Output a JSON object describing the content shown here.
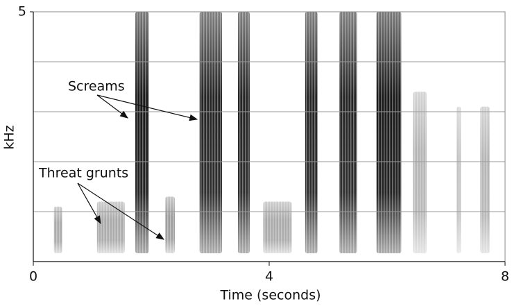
{
  "chart_data": {
    "type": "spectrogram",
    "xlabel": "Time (seconds)",
    "ylabel": "kHz",
    "xlim": [
      0,
      8
    ],
    "xticks": [
      0,
      4,
      8
    ],
    "ylim": [
      0,
      5
    ],
    "yticks": [
      5
    ],
    "ygrid": [
      1,
      2,
      3,
      4
    ],
    "color": "#1a1a1a",
    "annotations": [
      "Screams",
      "Threat grunts"
    ],
    "bands": [
      {
        "x": [
          0.35,
          0.49
        ],
        "top": 1.1,
        "level": 0.35
      },
      {
        "x": [
          1.08,
          1.55
        ],
        "top": 1.2,
        "level": 0.35
      },
      {
        "x": [
          1.73,
          1.96
        ],
        "top": 5,
        "level": 0.95
      },
      {
        "x": [
          2.24,
          2.4
        ],
        "top": 1.3,
        "level": 0.4
      },
      {
        "x": [
          2.82,
          3.2
        ],
        "top": 5,
        "level": 0.9
      },
      {
        "x": [
          3.47,
          3.67
        ],
        "top": 5,
        "level": 0.9
      },
      {
        "x": [
          3.9,
          4.38
        ],
        "top": 1.2,
        "level": 0.35
      },
      {
        "x": [
          4.61,
          4.82
        ],
        "top": 5,
        "level": 0.9
      },
      {
        "x": [
          5.19,
          5.49
        ],
        "top": 5,
        "level": 0.9
      },
      {
        "x": [
          5.82,
          6.24
        ],
        "top": 5,
        "level": 0.95
      },
      {
        "x": [
          6.44,
          6.67
        ],
        "top": 3.4,
        "level": 0.3
      },
      {
        "x": [
          7.18,
          7.25
        ],
        "top": 3.1,
        "level": 0.25
      },
      {
        "x": [
          7.58,
          7.74
        ],
        "top": 3.1,
        "level": 0.3
      }
    ]
  }
}
